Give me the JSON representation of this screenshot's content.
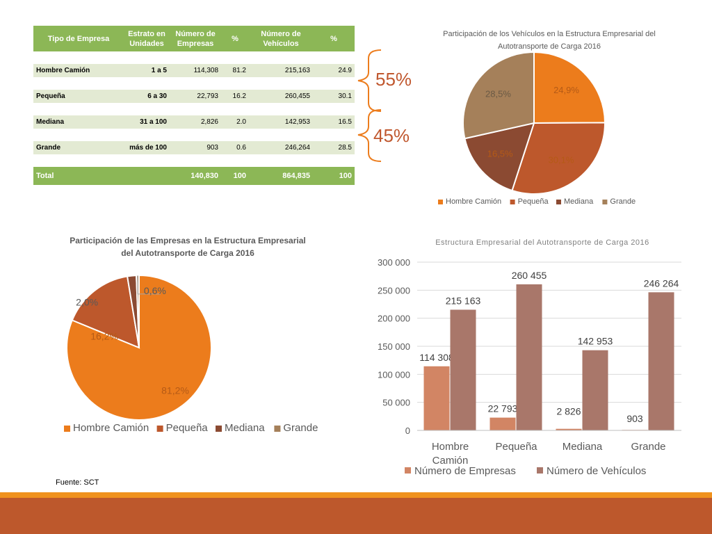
{
  "table": {
    "headers": [
      "Tipo de Empresa",
      "Estrato en Unidades",
      "Número de Empresas",
      "%",
      "Número de Vehículos",
      "%"
    ],
    "rows": [
      {
        "tipo": "Hombre Camión",
        "estrato": "1 a 5",
        "empresas": "114,308",
        "pct_empresas": "81.2",
        "vehiculos": "215,163",
        "pct_vehiculos": "24.9"
      },
      {
        "tipo": "Pequeña",
        "estrato": "6 a 30",
        "empresas": "22,793",
        "pct_empresas": "16.2",
        "vehiculos": "260,455",
        "pct_vehiculos": "30.1"
      },
      {
        "tipo": "Mediana",
        "estrato": "31 a 100",
        "empresas": "2,826",
        "pct_empresas": "2.0",
        "vehiculos": "142,953",
        "pct_vehiculos": "16.5"
      },
      {
        "tipo": "Grande",
        "estrato": "más de 100",
        "empresas": "903",
        "pct_empresas": "0.6",
        "vehiculos": "246,264",
        "pct_vehiculos": "28.5"
      }
    ],
    "total": {
      "label": "Total",
      "empresas": "140,830",
      "pct_empresas": "100",
      "vehiculos": "864,835",
      "pct_vehiculos": "100"
    }
  },
  "callouts": {
    "top": "55%",
    "bottom": "45%"
  },
  "source": "Fuente: SCT",
  "colors": {
    "hombre": "#ec7c1c",
    "pequena": "#bd582c",
    "mediana": "#8b4a32",
    "grande": "#a5805a",
    "accent": "#c0582f",
    "tableGreen": "#8cb756"
  },
  "chart_data": [
    {
      "type": "pie",
      "title": "Participación de los Vehículos en la Estructura Empresarial del Autotransporte de Carga 2016",
      "title_lines": [
        "Participación de los Vehículos en la Estructura Empresarial del",
        "Autotransporte de Carga 2016"
      ],
      "categories": [
        "Hombre Camión",
        "Pequeña",
        "Mediana",
        "Grande"
      ],
      "values": [
        24.9,
        30.1,
        16.5,
        28.5
      ],
      "labels": [
        "24,9%",
        "30,1%",
        "16,5%",
        "28,5%"
      ],
      "legend": "bottom"
    },
    {
      "type": "pie",
      "title": "Participación de las Empresas en la Estructura Empresarial del Autotransporte de Carga 2016",
      "title_lines": [
        "Participación de las Empresas en la Estructura Empresarial",
        "del Autotransporte de Carga 2016"
      ],
      "categories": [
        "Hombre Camión",
        "Pequeña",
        "Mediana",
        "Grande"
      ],
      "values": [
        81.2,
        16.2,
        2.0,
        0.6
      ],
      "labels": [
        "81,2%",
        "16,2%",
        "2,0%",
        "0,6%"
      ],
      "legend": "bottom"
    },
    {
      "type": "bar",
      "title": "Estructura Empresarial del Autotransporte de Carga 2016",
      "categories": [
        "Hombre Camión",
        "Pequeña",
        "Mediana",
        "Grande"
      ],
      "series": [
        {
          "name": "Número de Empresas",
          "values": [
            114308,
            22793,
            2826,
            903
          ],
          "labels": [
            "114 308",
            "22 793",
            "2 826",
            "903"
          ]
        },
        {
          "name": "Número de Vehículos",
          "values": [
            215163,
            260455,
            142953,
            246264
          ],
          "labels": [
            "215 163",
            "260 455",
            "142 953",
            "246 264"
          ]
        }
      ],
      "ylim": [
        0,
        300000
      ],
      "yticks": [
        0,
        50000,
        100000,
        150000,
        200000,
        250000,
        300000
      ],
      "ytick_labels": [
        "0",
        "50 000",
        "100 000",
        "150 000",
        "200 000",
        "250 000",
        "300 000"
      ],
      "legend": "bottom",
      "grid": true
    }
  ]
}
